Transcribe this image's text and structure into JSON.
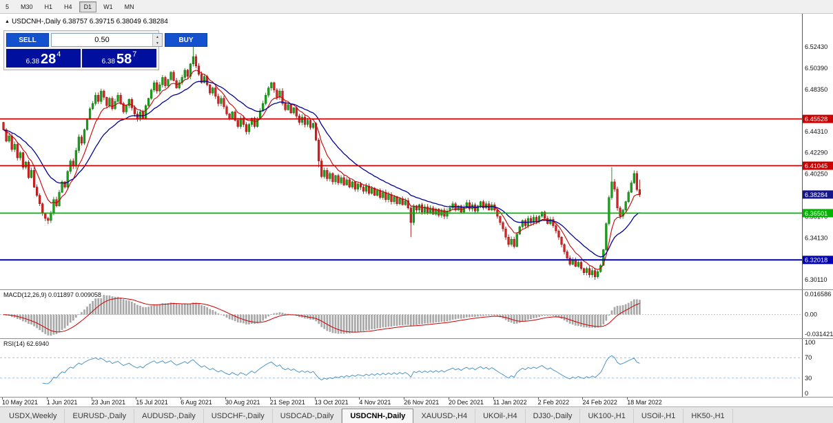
{
  "toolbar": {
    "timeframes": [
      {
        "label": "5",
        "active": false
      },
      {
        "label": "M30",
        "active": false
      },
      {
        "label": "H1",
        "active": false
      },
      {
        "label": "H4",
        "active": false
      },
      {
        "label": "D1",
        "active": true
      },
      {
        "label": "W1",
        "active": false
      },
      {
        "label": "MN",
        "active": false
      }
    ]
  },
  "chart": {
    "title": {
      "marker": "▲",
      "text": "USDCNH-,Daily 6.38757 6.39715 6.38049 6.38284"
    },
    "trade_panel": {
      "sell_label": "SELL",
      "buy_label": "BUY",
      "volume": "0.50",
      "up_arrow": "▲",
      "down_arrow": "▼",
      "button_color": "#1451cf",
      "price_bg": "#000f9e",
      "sell_price": {
        "prefix": "6.38",
        "big": "28",
        "sup": "4"
      },
      "buy_price": {
        "prefix": "6.38",
        "big": "58",
        "sup": "7"
      }
    }
  },
  "chart_data": {
    "type": "candlestick",
    "symbol": "USDCNH-",
    "timeframe": "Daily",
    "ohlc_current": {
      "open": 6.38757,
      "high": 6.39715,
      "low": 6.38049,
      "close": 6.38284
    },
    "ylim": [
      6.292,
      6.556
    ],
    "candle_up": "#18a318",
    "candle_down": "#d62222",
    "first_open": 6.452,
    "closes": [
      6.445,
      6.434,
      6.439,
      6.426,
      6.431,
      6.418,
      6.423,
      6.409,
      6.414,
      6.399,
      6.406,
      6.39,
      6.382,
      6.374,
      6.365,
      6.36,
      6.358,
      6.365,
      6.378,
      6.372,
      6.385,
      6.395,
      6.39,
      6.405,
      6.415,
      6.41,
      6.425,
      6.438,
      6.432,
      6.445,
      6.455,
      6.465,
      6.47,
      6.478,
      6.472,
      6.482,
      6.476,
      6.468,
      6.475,
      6.465,
      6.472,
      6.478,
      6.47,
      6.462,
      6.468,
      6.474,
      6.466,
      6.46,
      6.455,
      6.462,
      6.456,
      6.468,
      6.475,
      6.483,
      6.49,
      6.482,
      6.488,
      6.495,
      6.487,
      6.493,
      6.5,
      6.492,
      6.485,
      6.49,
      6.495,
      6.502,
      6.496,
      6.508,
      6.515,
      6.506,
      6.498,
      6.49,
      6.496,
      6.488,
      6.48,
      6.485,
      6.477,
      6.47,
      6.475,
      6.467,
      6.46,
      6.455,
      6.462,
      6.454,
      6.448,
      6.456,
      6.45,
      6.443,
      6.45,
      6.456,
      6.448,
      6.455,
      6.463,
      6.47,
      6.478,
      6.485,
      6.49,
      6.483,
      6.476,
      6.482,
      6.47,
      6.464,
      6.469,
      6.461,
      6.466,
      6.458,
      6.452,
      6.457,
      6.45,
      6.454,
      6.447,
      6.451,
      6.435,
      6.415,
      6.4,
      6.406,
      6.398,
      6.403,
      6.395,
      6.401,
      6.394,
      6.399,
      6.392,
      6.397,
      6.39,
      6.395,
      6.388,
      6.393,
      6.39,
      6.386,
      6.391,
      6.384,
      6.389,
      6.382,
      6.387,
      6.38,
      6.385,
      6.378,
      6.383,
      6.376,
      6.381,
      6.374,
      6.379,
      6.373,
      6.377,
      6.37,
      6.356,
      6.372,
      6.368,
      6.373,
      6.366,
      6.371,
      6.365,
      6.37,
      6.364,
      6.369,
      6.363,
      6.368,
      6.362,
      6.367,
      6.37,
      6.374,
      6.368,
      6.372,
      6.366,
      6.371,
      6.375,
      6.369,
      6.373,
      6.367,
      6.372,
      6.376,
      6.37,
      6.374,
      6.368,
      6.373,
      6.368,
      6.362,
      6.356,
      6.35,
      6.342,
      6.335,
      6.34,
      6.333,
      6.345,
      6.352,
      6.358,
      6.353,
      6.36,
      6.356,
      6.361,
      6.357,
      6.362,
      6.366,
      6.36,
      6.355,
      6.359,
      6.353,
      6.348,
      6.342,
      6.335,
      6.328,
      6.322,
      6.316,
      6.32,
      6.314,
      6.318,
      6.312,
      6.308,
      6.312,
      6.306,
      6.31,
      6.304,
      6.309,
      6.315,
      6.33,
      6.355,
      6.38,
      6.395,
      6.388,
      6.37,
      6.362,
      6.368,
      6.376,
      6.385,
      6.394,
      6.403,
      6.38757,
      6.38284
    ],
    "wick_overrides": {
      "16": {
        "low": 6.3545
      },
      "68": {
        "high": 6.5243
      },
      "113": {
        "low": 6.409
      },
      "146": {
        "low": 6.342
      },
      "183": {
        "low": 6.3312
      },
      "212": {
        "low": 6.3011
      },
      "218": {
        "high": 6.409
      },
      "226": {
        "high": 6.406
      },
      "228": {
        "high": 6.39715,
        "low": 6.38049
      }
    },
    "y_axis_labels": [
      "6.52430",
      "6.50390",
      "6.48350",
      "6.44310",
      "6.42290",
      "6.40250",
      "6.36170",
      "6.34130",
      "6.30110"
    ],
    "hlines": [
      {
        "value": 6.45528,
        "label": "6.45528",
        "color": "#cc0000",
        "width": 1.8
      },
      {
        "value": 6.41045,
        "label": "6.41045",
        "color": "#cc0000",
        "width": 1.8
      },
      {
        "value": 6.36501,
        "label": "6.36501",
        "color": "#00b400",
        "width": 1.8
      },
      {
        "value": 6.32018,
        "label": "6.32018",
        "color": "#0000b4",
        "width": 2.0
      }
    ],
    "current_price": {
      "value": 6.38284,
      "label": "6.38284",
      "color": "#15158c"
    },
    "ma_lines": [
      {
        "name": "ma-fast",
        "period": 8,
        "color": "#cc0000",
        "width": 1.1
      },
      {
        "name": "ma-slow",
        "period": 21,
        "color": "#000096",
        "width": 1.3
      }
    ],
    "x_labels": [
      "10 May 2021",
      "1 Jun 2021",
      "23 Jun 2021",
      "15 Jul 2021",
      "6 Aug 2021",
      "30 Aug 2021",
      "21 Sep 2021",
      "13 Oct 2021",
      "4 Nov 2021",
      "26 Nov 2021",
      "20 Dec 2021",
      "11 Jan 2022",
      "2 Feb 2022",
      "24 Feb 2022",
      "18 Mar 2022"
    ],
    "bars_per_label": 16,
    "indicators": {
      "macd": {
        "label": "MACD(12,26,9) 0.011897 0.009058",
        "fast": 12,
        "slow": 26,
        "signal": 9,
        "main_value": 0.011897,
        "signal_value": 0.009058,
        "axis_labels": [
          "0.016586",
          "0.00",
          "-0.031421"
        ],
        "histogram_color": "#a8a8a8",
        "signal_color": "#cc0000"
      },
      "rsi": {
        "label": "RSI(14) 62.6940",
        "period": 14,
        "current": 62.694,
        "levels": [
          70,
          30
        ],
        "axis_labels": [
          "100",
          "70",
          "30",
          "0"
        ],
        "line_color": "#4f96c8",
        "level_color": "#a9c0d8"
      }
    }
  },
  "tabs": {
    "active_index": 5,
    "items": [
      "USDX,Weekly",
      "EURUSD-,Daily",
      "AUDUSD-,Daily",
      "USDCHF-,Daily",
      "USDCAD-,Daily",
      "USDCNH-,Daily",
      "XAUUSD-,H4",
      "UKOil-,H4",
      "DJ30-,Daily",
      "UK100-,H1",
      "USOil-,H1",
      "HK50-,H1"
    ]
  }
}
